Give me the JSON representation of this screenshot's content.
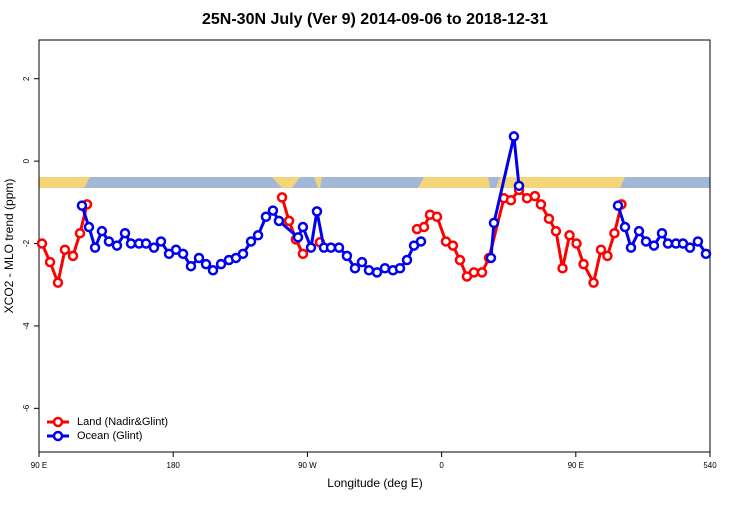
{
  "chart_data": {
    "type": "line",
    "title": "25N-30N July (Ver 9)   2014-09-06 to 2018-12-31",
    "x_label": "Longitude (deg E)",
    "y_label": "XCO2 - MLO trend (ppm)",
    "xlim": [
      90,
      540
    ],
    "xticks": [
      {
        "value": 90,
        "label": "90 E"
      },
      180,
      {
        "value": 270,
        "label": "90 W"
      },
      {
        "value": 360,
        "label": "0"
      },
      {
        "value": 450,
        "label": "90 E"
      },
      540
    ],
    "ylim": [
      -7.06,
      2.94
    ],
    "yticks": [
      2,
      0,
      -2,
      -4,
      -6
    ],
    "legend": "bottom-left",
    "series": [
      {
        "name": "Land (Nadir&Glint)",
        "color": "#ff0000",
        "x": [
          92.0,
          97.4,
          102.7,
          107.4,
          112.8,
          117.5,
          122.2,
          null,
          253.0,
          257.7,
          262.3,
          267.0,
          null,
          278.4,
          null,
          343.5,
          348.2,
          352.2,
          356.9,
          362.9,
          367.6,
          372.3,
          377.0,
          381.7,
          387.1,
          391.8,
          401.8,
          406.5,
          411.9,
          417.3,
          422.6,
          426.6,
          432.0,
          436.7,
          441.1,
          445.8,
          450.5,
          455.2,
          461.9,
          466.9,
          471.2,
          475.9,
          480.6
        ],
        "values": [
          -2.0,
          -2.45,
          -2.95,
          -2.15,
          -2.3,
          -1.75,
          -1.05,
          null,
          -0.88,
          -1.45,
          -1.9,
          -2.25,
          null,
          -1.97,
          null,
          -1.65,
          -1.6,
          -1.3,
          -1.35,
          -1.95,
          -2.05,
          -2.4,
          -2.8,
          -2.7,
          -2.7,
          -2.35,
          -0.9,
          -0.95,
          -0.7,
          -0.9,
          -0.85,
          -1.05,
          -1.4,
          -1.7,
          -2.6,
          -1.8,
          -2.0,
          -2.5,
          -2.95,
          -2.15,
          -2.3,
          -1.75,
          -1.05
        ]
      },
      {
        "name": "Ocean (Glint)",
        "color": "#0000ee",
        "x": [
          118.8,
          123.5,
          127.6,
          132.2,
          136.9,
          142.3,
          147.7,
          151.7,
          157.1,
          161.8,
          167.1,
          171.8,
          177.2,
          181.9,
          186.6,
          191.9,
          197.3,
          202.0,
          206.7,
          212.1,
          217.4,
          222.1,
          226.8,
          232.2,
          236.9,
          242.2,
          246.9,
          250.9,
          263.7,
          267.0,
          272.4,
          276.4,
          281.1,
          285.8,
          291.2,
          296.5,
          301.9,
          306.6,
          311.3,
          316.7,
          322.0,
          327.4,
          332.1,
          336.8,
          341.5,
          346.2,
          null,
          393.1,
          395.1,
          408.5,
          411.9,
          null,
          478.3,
          483.0,
          487.0,
          492.4,
          497.1,
          502.4,
          507.8,
          511.8,
          517.2,
          521.9,
          526.6,
          531.9,
          537.3
        ],
        "values": [
          -1.08,
          -1.6,
          -2.1,
          -1.7,
          -1.95,
          -2.05,
          -1.75,
          -2.0,
          -2.0,
          -2.0,
          -2.1,
          -1.95,
          -2.25,
          -2.15,
          -2.25,
          -2.55,
          -2.35,
          -2.5,
          -2.65,
          -2.5,
          -2.4,
          -2.35,
          -2.25,
          -1.95,
          -1.8,
          -1.35,
          -1.2,
          -1.45,
          -1.85,
          -1.6,
          -2.1,
          -1.22,
          -2.1,
          -2.1,
          -2.1,
          -2.3,
          -2.6,
          -2.45,
          -2.65,
          -2.7,
          -2.6,
          -2.65,
          -2.6,
          -2.4,
          -2.05,
          -1.95,
          null,
          -2.35,
          -1.5,
          0.6,
          -0.6,
          null,
          -1.08,
          -1.6,
          -2.1,
          -1.7,
          -1.95,
          -2.05,
          -1.75,
          -2.0,
          -2.0,
          -2.0,
          -2.1,
          -1.95,
          -2.25
        ]
      }
    ]
  }
}
